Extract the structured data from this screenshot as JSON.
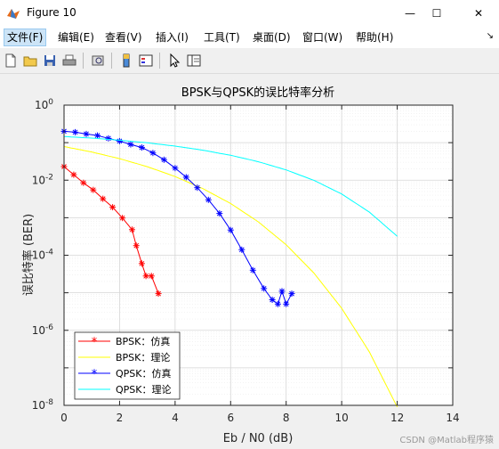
{
  "window": {
    "title": "Figure 10",
    "controls": {
      "minimize": "—",
      "maximize": "☐",
      "close": "✕"
    }
  },
  "menu": {
    "items": [
      {
        "label": "文件(F)"
      },
      {
        "label": "编辑(E)"
      },
      {
        "label": "查看(V)"
      },
      {
        "label": "插入(I)"
      },
      {
        "label": "工具(T)"
      },
      {
        "label": "桌面(D)"
      },
      {
        "label": "窗口(W)"
      },
      {
        "label": "帮助(H)"
      }
    ],
    "overflow_icon": "chevron-icon"
  },
  "toolbar": {
    "icons": [
      "new-figure-icon",
      "open-file-icon",
      "save-icon",
      "print-icon",
      "print-preview-icon",
      "colorbar-icon",
      "legend-icon",
      "pointer-icon",
      "property-inspector-icon"
    ]
  },
  "watermark": "CSDN @Matlab程序猿",
  "chart_data": {
    "type": "line",
    "title": "BPSK与QPSK的误比特率分析",
    "xlabel": "Eb / N0 (dB)",
    "ylabel": "误比特率 (BER)",
    "xlim": [
      0,
      14
    ],
    "ylim_exponent": [
      -8,
      0
    ],
    "yscale": "log",
    "x_ticks": [
      "0",
      "2",
      "4",
      "6",
      "8",
      "10",
      "12",
      "14"
    ],
    "y_ticks": [
      {
        "base": "10",
        "exp": "-8"
      },
      {
        "base": "10",
        "exp": "-6"
      },
      {
        "base": "10",
        "exp": "-4"
      },
      {
        "base": "10",
        "exp": "-2"
      },
      {
        "base": "10",
        "exp": "0"
      }
    ],
    "grid": true,
    "legend_position": "bottom-left",
    "colors": {
      "bpsk_sim": "#ff0000",
      "bpsk_theory": "#ffff00",
      "qpsk_sim": "#0000ff",
      "qpsk_theory": "#00ffff"
    },
    "series": [
      {
        "name": "BPSK：仿真",
        "color": "#ff0000",
        "marker": "*",
        "x": [
          0,
          0.35,
          0.7,
          1.05,
          1.4,
          1.75,
          2.1,
          2.45,
          2.6,
          2.8,
          2.95,
          3.15,
          3.4
        ],
        "y": [
          0.023,
          0.014,
          0.0085,
          0.0055,
          0.0032,
          0.0019,
          0.00098,
          0.00048,
          0.00018,
          6e-05,
          2.8e-05,
          2.8e-05,
          9.5e-06
        ]
      },
      {
        "name": "BPSK：理论",
        "color": "#ffff00",
        "marker": "",
        "x": [
          0,
          1,
          2,
          3,
          4,
          5,
          6,
          7,
          8,
          9,
          10,
          11,
          12
        ],
        "y": [
          0.0786,
          0.0563,
          0.0375,
          0.0229,
          0.0125,
          0.00595,
          0.00239,
          0.000773,
          0.000191,
          3.36e-05,
          3.87e-06,
          2.62e-07,
          9e-09
        ]
      },
      {
        "name": "QPSK：仿真",
        "color": "#0000ff",
        "marker": "*",
        "x": [
          0,
          0.4,
          0.8,
          1.2,
          1.6,
          2.0,
          2.4,
          2.8,
          3.2,
          3.6,
          4.0,
          4.4,
          4.8,
          5.2,
          5.6,
          6.0,
          6.4,
          6.8,
          7.2,
          7.5,
          7.7,
          7.85,
          8.0,
          8.2
        ],
        "y": [
          0.2,
          0.19,
          0.17,
          0.155,
          0.13,
          0.11,
          0.09,
          0.074,
          0.053,
          0.035,
          0.021,
          0.012,
          0.0063,
          0.003,
          0.0013,
          0.00047,
          0.00014,
          4e-05,
          1.3e-05,
          6.5e-06,
          5e-06,
          1.1e-05,
          5e-06,
          9.5e-06
        ]
      },
      {
        "name": "QPSK：理论",
        "color": "#00ffff",
        "marker": "",
        "x": [
          0,
          1,
          2,
          3,
          4,
          5,
          6,
          7,
          8,
          9,
          10,
          11,
          12
        ],
        "y": [
          0.146,
          0.132,
          0.116,
          0.099,
          0.081,
          0.063,
          0.046,
          0.031,
          0.0188,
          0.0099,
          0.0043,
          0.0014,
          0.00032
        ]
      }
    ]
  }
}
